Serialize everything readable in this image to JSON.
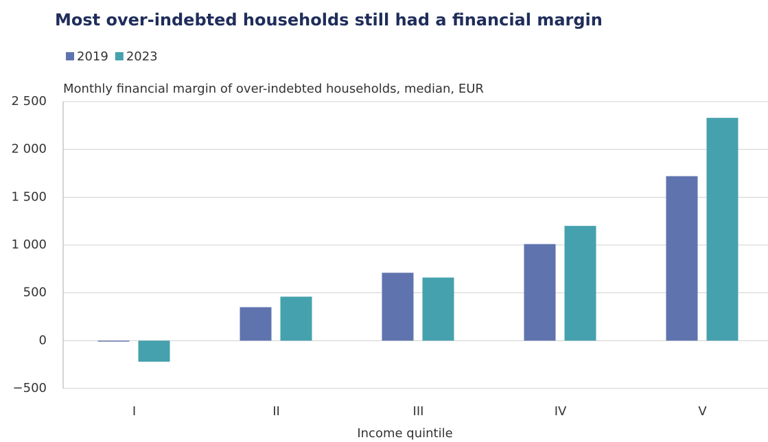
{
  "chart_data": {
    "type": "bar",
    "title": "Most over-indebted households still had a financial margin",
    "subtitle": "Monthly financial margin of over-indebted households, median, EUR",
    "x_label": "Income quintile",
    "categories": [
      "I",
      "II",
      "III",
      "IV",
      "V"
    ],
    "series": [
      {
        "name": "2019",
        "color": "#5f73ae",
        "values": [
          -10,
          350,
          710,
          1010,
          1720
        ]
      },
      {
        "name": "2023",
        "color": "#45a1ad",
        "values": [
          -220,
          460,
          660,
          1200,
          2330
        ]
      }
    ],
    "ylim": [
      -500,
      2500
    ],
    "yticks": [
      {
        "value": -500,
        "label": "−500"
      },
      0,
      500,
      {
        "value": 1000,
        "label": "1 000"
      },
      {
        "value": 1500,
        "label": "1 500"
      },
      {
        "value": 2000,
        "label": "2 000"
      },
      {
        "value": 2500,
        "label": "2 500"
      }
    ],
    "grid": true,
    "legend": "top-left"
  }
}
